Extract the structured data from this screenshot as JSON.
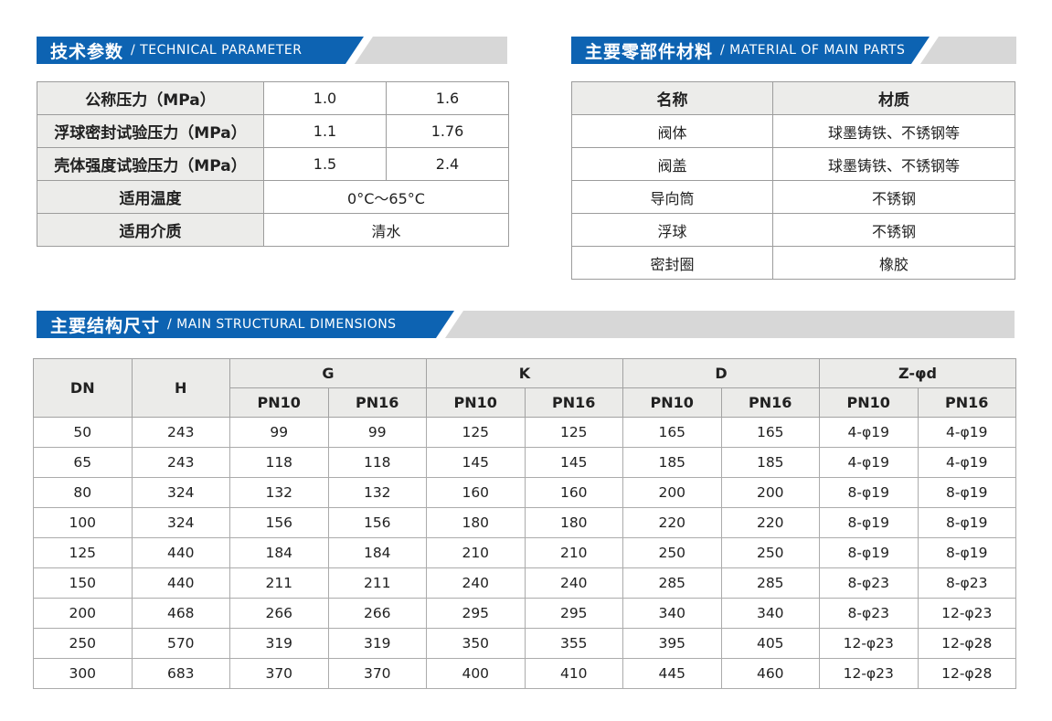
{
  "colors": {
    "accent_blue": "#0d63b2",
    "bar_gray": "#d7d7d7",
    "cell_gray": "#ececea",
    "border_gray": "#9c9c9c"
  },
  "tech_params": {
    "title_zh": "技术参数",
    "title_en": "/ TECHNICAL PARAMETER",
    "rows": [
      {
        "label": "公称压力（MPa）",
        "values": [
          "1.0",
          "1.6"
        ]
      },
      {
        "label": "浮球密封试验压力（MPa）",
        "values": [
          "1.1",
          "1.76"
        ]
      },
      {
        "label": "壳体强度试验压力（MPa）",
        "values": [
          "1.5",
          "2.4"
        ]
      },
      {
        "label": "适用温度",
        "values": [
          "0°C～65°C"
        ]
      },
      {
        "label": "适用介质",
        "values": [
          "清水"
        ]
      }
    ]
  },
  "materials": {
    "title_zh": "主要零部件材料",
    "title_en": "/ MATERIAL OF MAIN PARTS",
    "columns": [
      "名称",
      "材质"
    ],
    "rows": [
      [
        "阀体",
        "球墨铸铁、不锈钢等"
      ],
      [
        "阀盖",
        "球墨铸铁、不锈钢等"
      ],
      [
        "导向筒",
        "不锈钢"
      ],
      [
        "浮球",
        "不锈钢"
      ],
      [
        "密封圈",
        "橡胶"
      ]
    ]
  },
  "dimensions": {
    "title_zh": "主要结构尺寸",
    "title_en": "/ MAIN STRUCTURAL DIMENSIONS",
    "fixed_columns": [
      "DN",
      "H"
    ],
    "col_groups": [
      "G",
      "K",
      "D",
      "Z-φd"
    ],
    "sub_headers": [
      "PN10",
      "PN16"
    ],
    "rows": [
      [
        "50",
        "243",
        "99",
        "99",
        "125",
        "125",
        "165",
        "165",
        "4-φ19",
        "4-φ19"
      ],
      [
        "65",
        "243",
        "118",
        "118",
        "145",
        "145",
        "185",
        "185",
        "4-φ19",
        "4-φ19"
      ],
      [
        "80",
        "324",
        "132",
        "132",
        "160",
        "160",
        "200",
        "200",
        "8-φ19",
        "8-φ19"
      ],
      [
        "100",
        "324",
        "156",
        "156",
        "180",
        "180",
        "220",
        "220",
        "8-φ19",
        "8-φ19"
      ],
      [
        "125",
        "440",
        "184",
        "184",
        "210",
        "210",
        "250",
        "250",
        "8-φ19",
        "8-φ19"
      ],
      [
        "150",
        "440",
        "211",
        "211",
        "240",
        "240",
        "285",
        "285",
        "8-φ23",
        "8-φ23"
      ],
      [
        "200",
        "468",
        "266",
        "266",
        "295",
        "295",
        "340",
        "340",
        "8-φ23",
        "12-φ23"
      ],
      [
        "250",
        "570",
        "319",
        "319",
        "350",
        "355",
        "395",
        "405",
        "12-φ23",
        "12-φ28"
      ],
      [
        "300",
        "683",
        "370",
        "370",
        "400",
        "410",
        "445",
        "460",
        "12-φ23",
        "12-φ28"
      ]
    ]
  }
}
